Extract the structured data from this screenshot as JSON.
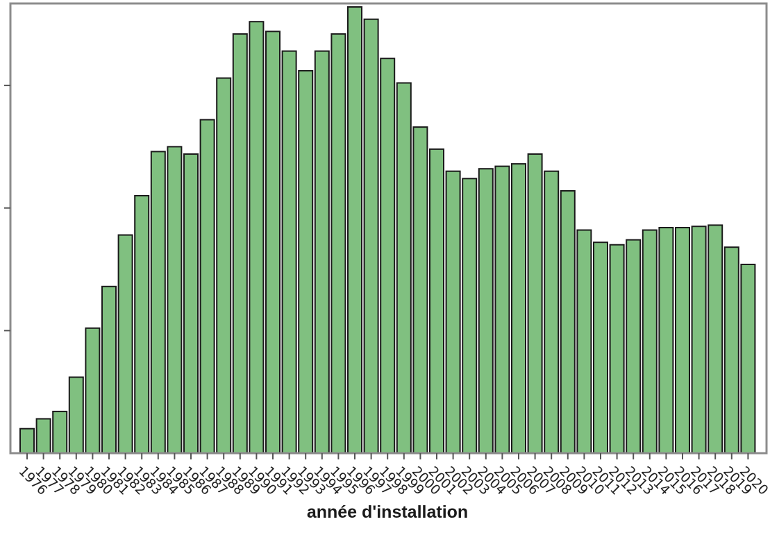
{
  "chart_data": {
    "type": "bar",
    "title": "",
    "xlabel": "année d'installation",
    "ylabel": "",
    "ylim": [
      0,
      1.82
    ],
    "y_ticks": [
      0.5,
      1.0,
      1.5
    ],
    "y_tick_labels_shown": false,
    "grid": false,
    "legend": "none",
    "bar_color": "#80c080",
    "bar_edge_color": "#1a1a1a",
    "frame_color": "#8c8c8c",
    "categories": [
      "1976",
      "1977",
      "1978",
      "1979",
      "1980",
      "1981",
      "1982",
      "1983",
      "1984",
      "1985",
      "1986",
      "1987",
      "1988",
      "1989",
      "1990",
      "1991",
      "1992",
      "1993",
      "1994",
      "1995",
      "1996",
      "1997",
      "1998",
      "1999",
      "2000",
      "2001",
      "2002",
      "2003",
      "2004",
      "2005",
      "2006",
      "2007",
      "2008",
      "2009",
      "2010",
      "2011",
      "2012",
      "2013",
      "2014",
      "2015",
      "2016",
      "2017",
      "2018",
      "2019",
      "2020"
    ],
    "values": [
      0.1,
      0.14,
      0.17,
      0.31,
      0.51,
      0.68,
      0.89,
      1.05,
      1.23,
      1.25,
      1.22,
      1.36,
      1.53,
      1.71,
      1.76,
      1.72,
      1.64,
      1.56,
      1.64,
      1.71,
      1.82,
      1.77,
      1.61,
      1.51,
      1.33,
      1.24,
      1.15,
      1.12,
      1.16,
      1.17,
      1.18,
      1.22,
      1.15,
      1.07,
      0.91,
      0.86,
      0.85,
      0.87,
      0.91,
      0.92,
      0.92,
      0.925,
      0.93,
      0.84,
      0.77
    ]
  }
}
